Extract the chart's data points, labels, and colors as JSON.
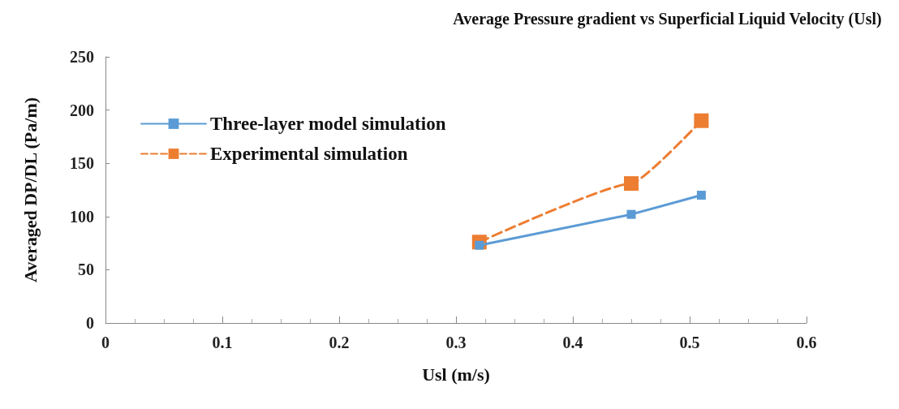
{
  "chart_data": {
    "type": "line",
    "title": "Average Pressure gradient vs Superficial Liquid Velocity (Usl)",
    "xlabel": "Usl (m/s)",
    "ylabel": "Averaged DP/DL (Pa/m)",
    "xlim": [
      0,
      0.6
    ],
    "xticks": [
      0,
      0.1,
      0.2,
      0.3,
      0.4,
      0.5,
      0.6
    ],
    "ylim": [
      0,
      250
    ],
    "yticks": [
      0,
      50,
      100,
      150,
      200,
      250
    ],
    "grid": false,
    "legend": "top left",
    "marker": "square",
    "series": [
      {
        "name": "Three-layer model simulation",
        "color": "#5b9bd5",
        "line_style": "solid",
        "x": [
          0.32,
          0.45,
          0.51
        ],
        "values": [
          73,
          102,
          120
        ]
      },
      {
        "name": "Experimental simulation",
        "color": "#ed7d31",
        "line_style": "dashed",
        "x": [
          0.32,
          0.45,
          0.51
        ],
        "values": [
          76,
          131,
          190
        ]
      }
    ]
  }
}
